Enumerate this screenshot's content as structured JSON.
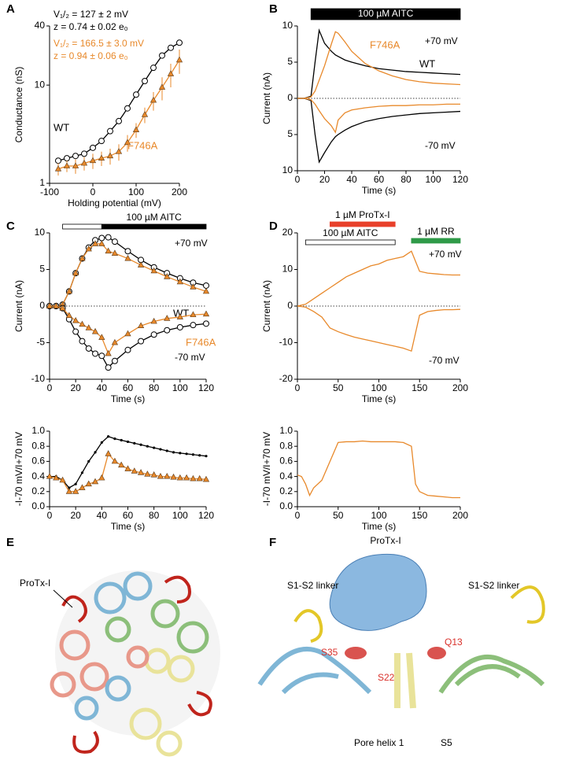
{
  "chart_data": [
    {
      "panel": "A",
      "type": "line",
      "xlabel": "Holding potential (mV)",
      "ylabel": "Conductance (nS)",
      "log_y": true,
      "xlim": [
        -100,
        200
      ],
      "xticks": [
        -100,
        0,
        100,
        200
      ],
      "ylim": [
        1,
        40
      ],
      "yticks": [
        1,
        10,
        40
      ],
      "x": [
        -80,
        -60,
        -40,
        -20,
        0,
        20,
        40,
        60,
        80,
        100,
        120,
        140,
        160,
        180,
        200
      ],
      "series": [
        {
          "name": "WT",
          "color": "#000000",
          "marker": "circle",
          "values": [
            1.7,
            1.8,
            1.9,
            2.0,
            2.3,
            2.7,
            3.4,
            4.3,
            5.8,
            8,
            11,
            15,
            20,
            24,
            27
          ]
        },
        {
          "name": "F746A",
          "color": "#e8892b",
          "marker": "triangle",
          "values": [
            1.4,
            1.5,
            1.5,
            1.6,
            1.7,
            1.8,
            1.9,
            2.1,
            2.6,
            3.5,
            5,
            7,
            9.5,
            13,
            18
          ],
          "errors": [
            0.2,
            0.2,
            0.25,
            0.25,
            0.3,
            0.3,
            0.35,
            0.4,
            0.5,
            0.6,
            0.9,
            1.5,
            2.5,
            3.5,
            5
          ]
        }
      ],
      "annotations": [
        {
          "text": "V₁/₂ = 127 ± 2 mV",
          "color": "#000000"
        },
        {
          "text": "z = 0.74 ± 0.02 e₀",
          "color": "#000000"
        },
        {
          "text": "V₁/₂ = 166.5 ± 3.0 mV",
          "color": "#e8892b"
        },
        {
          "text": "z = 0.94 ± 0.06 e₀",
          "color": "#e8892b"
        }
      ]
    },
    {
      "panel": "B",
      "type": "line",
      "xlabel": "Time (s)",
      "ylabel": "Current (nA)",
      "zero_line": true,
      "xlim": [
        0,
        120
      ],
      "xticks": [
        0,
        20,
        40,
        60,
        80,
        100,
        120
      ],
      "ylim": [
        -10,
        10
      ],
      "yticks": [
        {
          "value": -10,
          "label": "10"
        },
        {
          "value": -5,
          "label": "5"
        },
        0,
        5,
        10
      ],
      "x": [
        0,
        5,
        10,
        13,
        16,
        20,
        25,
        28,
        30,
        35,
        40,
        50,
        60,
        70,
        80,
        90,
        100,
        110,
        120
      ],
      "series": [
        {
          "name": "WT",
          "color": "#000000",
          "values": [
            0,
            0,
            0.3,
            5,
            9.4,
            7.6,
            6.5,
            6,
            5.8,
            5.3,
            5,
            4.5,
            4.1,
            3.9,
            3.7,
            3.6,
            3.5,
            3.4,
            3.3
          ]
        },
        {
          "name": "F746A",
          "color": "#e8892b",
          "values": [
            0,
            0,
            0.2,
            1,
            2.5,
            4.5,
            7.5,
            9.2,
            9,
            7.8,
            6.5,
            4.8,
            3.8,
            3.1,
            2.6,
            2.3,
            2.1,
            2,
            1.9
          ]
        },
        {
          "color": "#000000",
          "values": [
            0,
            0,
            -0.3,
            -5,
            -8.8,
            -7.5,
            -6,
            -5.3,
            -5,
            -4.4,
            -3.9,
            -3.2,
            -2.8,
            -2.5,
            -2.3,
            -2.1,
            -2,
            -1.9,
            -1.8
          ]
        },
        {
          "color": "#e8892b",
          "values": [
            0,
            0,
            -0.2,
            -0.8,
            -1.7,
            -2.8,
            -3.8,
            -4.7,
            -3,
            -2,
            -1.6,
            -1.3,
            -1.1,
            -1,
            -1,
            -0.9,
            -0.9,
            -0.8,
            -0.8
          ]
        }
      ],
      "annotations": [
        {
          "text": "+70 mV",
          "color": "#000000"
        },
        {
          "text": "-70 mV",
          "color": "#000000"
        }
      ],
      "bars": [
        {
          "label": "100 µM AITC",
          "start": 10,
          "end": 120,
          "color": "#000000"
        }
      ]
    },
    {
      "panel": "C",
      "type": "line",
      "xlabel": "Time (s)",
      "ylabel": "Current (nA)",
      "zero_line": true,
      "xlim": [
        0,
        120
      ],
      "xticks": [
        0,
        20,
        40,
        60,
        80,
        100,
        120
      ],
      "ylim": [
        -10,
        10
      ],
      "yticks": [
        -10,
        -5,
        0,
        5,
        10
      ],
      "x": [
        0,
        5,
        10,
        15,
        20,
        25,
        30,
        35,
        40,
        45,
        50,
        60,
        70,
        80,
        90,
        100,
        110,
        120
      ],
      "series": [
        {
          "name": "WT",
          "color": "#000000",
          "marker": "circle",
          "values": [
            0,
            0,
            0.2,
            2,
            4.5,
            6.5,
            8,
            9,
            9.3,
            9.4,
            8.8,
            7.5,
            6.3,
            5.3,
            4.5,
            3.8,
            3.2,
            2.8
          ]
        },
        {
          "name": "F746A",
          "color": "#e8892b",
          "marker": "triangle",
          "values": [
            0,
            0,
            0.2,
            2,
            4.5,
            6.5,
            7.8,
            8.5,
            8.5,
            7.5,
            7.2,
            6.5,
            5.6,
            4.8,
            4,
            3.3,
            2.6,
            2
          ]
        },
        {
          "color": "#000000",
          "marker": "circle",
          "values": [
            0,
            0,
            -0.3,
            -1.8,
            -3.5,
            -4.8,
            -5.8,
            -6.5,
            -6.8,
            -8.4,
            -7.5,
            -6,
            -4.8,
            -3.9,
            -3.3,
            -2.9,
            -2.6,
            -2.4
          ]
        },
        {
          "color": "#e8892b",
          "marker": "triangle",
          "values": [
            0,
            0,
            -0.3,
            -1.3,
            -2,
            -2.5,
            -3,
            -3.5,
            -4.3,
            -6.5,
            -5,
            -3.8,
            -2.7,
            -2.1,
            -1.7,
            -1.5,
            -1.2,
            -1.1
          ]
        }
      ],
      "annotations": [
        {
          "text": "+70 mV",
          "color": "#000000"
        },
        {
          "text": "-70 mV",
          "color": "#000000"
        }
      ],
      "bars": [
        {
          "start": 10,
          "end": 40,
          "color": "#ffffff"
        },
        {
          "label": "100 µM AITC",
          "start": 40,
          "end": 120,
          "color": "#000000"
        }
      ]
    },
    {
      "type": "line",
      "xlabel": "Time (s)",
      "ylabel": "-I-70 mV/I+70 mV",
      "xlim": [
        0,
        120
      ],
      "xticks": [
        0,
        20,
        40,
        60,
        80,
        100,
        120
      ],
      "ylim": [
        0,
        1
      ],
      "yticks": [
        {
          "value": 0,
          "label": "0.0"
        },
        0.2,
        0.4,
        0.6,
        0.8,
        {
          "value": 1,
          "label": "1.0"
        }
      ],
      "x": [
        0,
        5,
        10,
        15,
        20,
        25,
        30,
        35,
        40,
        45,
        50,
        55,
        60,
        65,
        70,
        75,
        80,
        85,
        90,
        95,
        100,
        105,
        110,
        115,
        120
      ],
      "series": [
        {
          "color": "#000000",
          "marker": "dot",
          "values": [
            0.4,
            0.4,
            0.35,
            0.25,
            0.3,
            0.45,
            0.6,
            0.72,
            0.85,
            0.93,
            0.9,
            0.88,
            0.86,
            0.84,
            0.82,
            0.8,
            0.78,
            0.76,
            0.74,
            0.72,
            0.71,
            0.7,
            0.69,
            0.68,
            0.67
          ]
        },
        {
          "color": "#e8892b",
          "marker": "triangle",
          "values": [
            0.4,
            0.38,
            0.35,
            0.2,
            0.2,
            0.25,
            0.3,
            0.33,
            0.38,
            0.7,
            0.6,
            0.55,
            0.5,
            0.47,
            0.45,
            0.43,
            0.42,
            0.4,
            0.4,
            0.39,
            0.38,
            0.38,
            0.37,
            0.37,
            0.36
          ]
        }
      ]
    },
    {
      "panel": "D",
      "type": "line",
      "xlabel": "Time (s)",
      "ylabel": "Current (nA)",
      "zero_line": true,
      "xlim": [
        0,
        200
      ],
      "xticks": [
        0,
        50,
        100,
        150,
        200
      ],
      "ylim": [
        -20,
        20
      ],
      "yticks": [
        -20,
        -10,
        0,
        10,
        20
      ],
      "x": [
        0,
        10,
        20,
        30,
        40,
        50,
        60,
        70,
        80,
        90,
        100,
        110,
        120,
        130,
        140,
        150,
        160,
        170,
        180,
        190,
        200
      ],
      "series": [
        {
          "color": "#e8892b",
          "values": [
            0,
            0.5,
            2,
            3.5,
            5,
            6.5,
            8,
            9,
            10,
            11,
            11.5,
            12.5,
            13,
            13.5,
            15,
            9.5,
            9,
            8.8,
            8.6,
            8.5,
            8.5
          ]
        },
        {
          "color": "#e8892b",
          "values": [
            0,
            -0.3,
            -1.5,
            -3,
            -6,
            -7,
            -7.8,
            -8.5,
            -9,
            -9.5,
            -10,
            -10.5,
            -11,
            -11.5,
            -12.3,
            -2.5,
            -1.5,
            -1.2,
            -1,
            -1,
            -0.9
          ]
        }
      ],
      "annotations": [
        {
          "text": "+70 mV",
          "color": "#000000"
        },
        {
          "text": "-70 mV",
          "color": "#000000"
        }
      ],
      "bars": [
        {
          "label": "100 µM AITC",
          "start": 10,
          "end": 120,
          "color": "#ffffff"
        },
        {
          "label": "1 µM ProTx-I",
          "start": 40,
          "end": 120,
          "color": "#e8402a"
        },
        {
          "label": "1 µM RR",
          "start": 140,
          "end": 200,
          "color": "#2f9a48"
        }
      ]
    },
    {
      "type": "line",
      "xlabel": "Time (s)",
      "ylabel": "-I-70 mV/I+70 mV",
      "xlim": [
        0,
        200
      ],
      "xticks": [
        0,
        50,
        100,
        150,
        200
      ],
      "ylim": [
        0,
        1
      ],
      "yticks": [
        {
          "value": 0,
          "label": "0.0"
        },
        0.2,
        0.4,
        0.6,
        0.8,
        {
          "value": 1,
          "label": "1.0"
        }
      ],
      "x": [
        0,
        5,
        10,
        15,
        20,
        30,
        40,
        50,
        60,
        70,
        80,
        90,
        100,
        110,
        120,
        130,
        140,
        145,
        150,
        160,
        170,
        180,
        190,
        200
      ],
      "series": [
        {
          "color": "#e8892b",
          "values": [
            0.42,
            0.4,
            0.3,
            0.15,
            0.25,
            0.35,
            0.6,
            0.85,
            0.86,
            0.86,
            0.87,
            0.86,
            0.86,
            0.86,
            0.86,
            0.85,
            0.8,
            0.3,
            0.2,
            0.15,
            0.14,
            0.13,
            0.12,
            0.12
          ]
        }
      ]
    }
  ],
  "structures": [
    {
      "panel": "E",
      "labels": [
        "ProTx-I"
      ]
    },
    {
      "panel": "F",
      "labels": [
        "ProTx-I",
        "S1-S2 linker",
        "S1-S2 linker",
        "S35",
        "Q13",
        "S22",
        "Pore helix 1",
        "S5"
      ]
    }
  ]
}
